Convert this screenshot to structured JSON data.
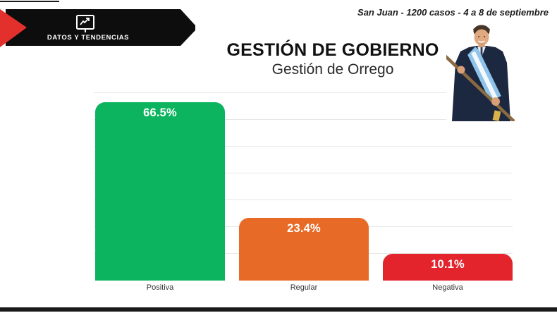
{
  "top_caption": "San Juan - 1200 casos - 4 a 8 de septiembre",
  "banner": {
    "label": "DATOS Y TENDENCIAS",
    "icon": "presentation-trend-chart-icon",
    "black": "#0d0d0d",
    "accent_red": "#e4302c"
  },
  "header": {
    "title": "GESTIÓN DE GOBIERNO",
    "subtitle": "Gestión de Orrego"
  },
  "photo": {
    "description": "Hombre de traje oscuro con banda presidencial argentina y bastón de mando"
  },
  "chart_data": {
    "type": "bar",
    "title": "GESTIÓN DE GOBIERNO",
    "subtitle": "Gestión de Orrego",
    "categories": [
      "Positiva",
      "Regular",
      "Negativa"
    ],
    "values": [
      66.5,
      23.4,
      10.1
    ],
    "value_labels": [
      "66.5%",
      "23.4%",
      "10.1%"
    ],
    "bar_colors": [
      "#0cb45f",
      "#e76b27",
      "#e3242d"
    ],
    "xlabel": "",
    "ylabel": "",
    "ylim": [
      0,
      70
    ],
    "grid": true,
    "grid_step": 10,
    "grid_color": "#e7e7e7",
    "legend": false
  }
}
